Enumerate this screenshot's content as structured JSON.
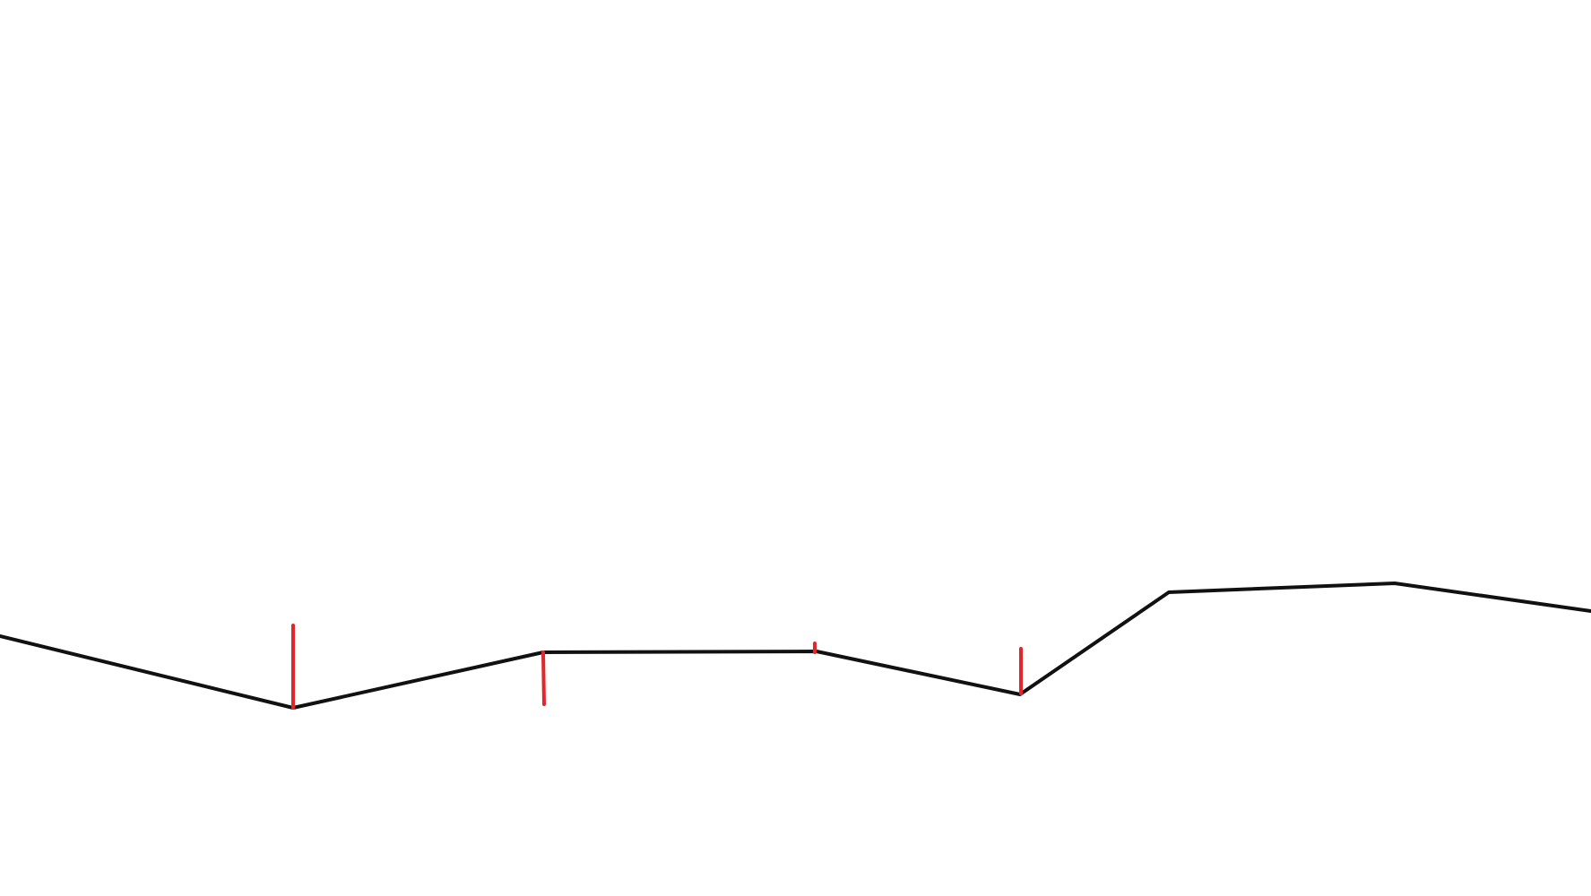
{
  "drawing": {
    "background_color": "#ffffff",
    "line_color": "#111111",
    "marker_color": "#e3262b",
    "polyline": {
      "name": "terrain-profile-line",
      "vertex_count": 9
    },
    "markers": [
      {
        "name": "marker-1",
        "direction": "up"
      },
      {
        "name": "marker-2",
        "direction": "down"
      },
      {
        "name": "marker-3",
        "direction": "up"
      },
      {
        "name": "marker-4",
        "direction": "up"
      }
    ]
  }
}
